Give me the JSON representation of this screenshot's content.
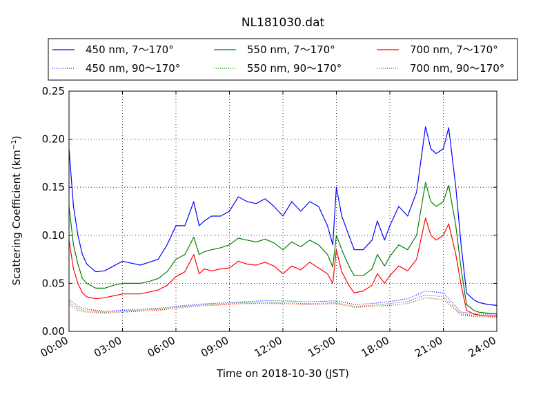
{
  "chart_data": {
    "type": "line",
    "title": "NL181030.dat",
    "xlabel": "Time on 2018-10-30 (JST)",
    "ylabel": "Scattering Coefficient (km",
    "ylabel_sup": "−1",
    "ylabel_close": ")",
    "xlim": [
      0,
      24
    ],
    "ylim": [
      0,
      0.25
    ],
    "grid": true,
    "legend_position": "top",
    "x_ticks": [
      0,
      3,
      6,
      9,
      12,
      15,
      18,
      21,
      24
    ],
    "x_tick_labels": [
      "00:00",
      "03:00",
      "06:00",
      "09:00",
      "12:00",
      "15:00",
      "18:00",
      "21:00",
      "24:00"
    ],
    "y_ticks": [
      0,
      0.05,
      0.1,
      0.15,
      0.2,
      0.25
    ],
    "y_tick_labels": [
      "0.00",
      "0.05",
      "0.10",
      "0.15",
      "0.20",
      "0.25"
    ],
    "series": [
      {
        "name": "450 nm, 7～170°",
        "color": "#0000ff",
        "style": "solid",
        "x": [
          0,
          0.25,
          0.5,
          0.75,
          1,
          1.5,
          2,
          2.5,
          3,
          3.5,
          4,
          4.5,
          5,
          5.5,
          6,
          6.5,
          7,
          7.3,
          7.6,
          8,
          8.5,
          9,
          9.5,
          10,
          10.5,
          11,
          11.5,
          12,
          12.5,
          13,
          13.5,
          14,
          14.5,
          14.8,
          15,
          15.3,
          15.7,
          16,
          16.5,
          17,
          17.3,
          17.7,
          18,
          18.5,
          19,
          19.5,
          20,
          20.3,
          20.6,
          21,
          21.3,
          21.7,
          22,
          22.3,
          22.7,
          23,
          23.5,
          24
        ],
        "y": [
          0.19,
          0.13,
          0.1,
          0.08,
          0.07,
          0.062,
          0.063,
          0.068,
          0.073,
          0.071,
          0.069,
          0.072,
          0.075,
          0.09,
          0.11,
          0.11,
          0.135,
          0.11,
          0.115,
          0.12,
          0.12,
          0.125,
          0.14,
          0.135,
          0.133,
          0.138,
          0.13,
          0.12,
          0.135,
          0.125,
          0.135,
          0.13,
          0.11,
          0.09,
          0.15,
          0.12,
          0.1,
          0.085,
          0.085,
          0.095,
          0.115,
          0.095,
          0.11,
          0.13,
          0.12,
          0.145,
          0.213,
          0.19,
          0.185,
          0.19,
          0.212,
          0.15,
          0.09,
          0.04,
          0.033,
          0.03,
          0.028,
          0.027
        ]
      },
      {
        "name": "450 nm, 90～170°",
        "color": "#0000ff",
        "style": "dotted",
        "x": [
          0,
          0.5,
          1,
          2,
          3,
          4,
          5,
          6,
          7,
          8,
          9,
          10,
          11,
          12,
          13,
          14,
          15,
          16,
          17,
          18,
          19,
          20,
          21,
          22,
          23,
          24
        ],
        "y": [
          0.033,
          0.026,
          0.023,
          0.021,
          0.022,
          0.023,
          0.024,
          0.026,
          0.028,
          0.029,
          0.03,
          0.031,
          0.032,
          0.032,
          0.031,
          0.031,
          0.032,
          0.028,
          0.029,
          0.031,
          0.034,
          0.042,
          0.04,
          0.02,
          0.018,
          0.018
        ]
      },
      {
        "name": "550 nm, 7～170°",
        "color": "#008000",
        "style": "solid",
        "x": [
          0,
          0.25,
          0.5,
          0.75,
          1,
          1.5,
          2,
          2.5,
          3,
          3.5,
          4,
          4.5,
          5,
          5.5,
          6,
          6.5,
          7,
          7.3,
          7.6,
          8,
          8.5,
          9,
          9.5,
          10,
          10.5,
          11,
          11.5,
          12,
          12.5,
          13,
          13.5,
          14,
          14.5,
          14.8,
          15,
          15.3,
          15.7,
          16,
          16.5,
          17,
          17.3,
          17.7,
          18,
          18.5,
          19,
          19.5,
          20,
          20.3,
          20.6,
          21,
          21.3,
          21.7,
          22,
          22.3,
          22.7,
          23,
          23.5,
          24
        ],
        "y": [
          0.13,
          0.09,
          0.07,
          0.055,
          0.05,
          0.045,
          0.045,
          0.048,
          0.05,
          0.05,
          0.05,
          0.052,
          0.055,
          0.062,
          0.075,
          0.08,
          0.098,
          0.08,
          0.083,
          0.085,
          0.087,
          0.09,
          0.097,
          0.095,
          0.093,
          0.096,
          0.092,
          0.085,
          0.093,
          0.088,
          0.095,
          0.09,
          0.08,
          0.067,
          0.1,
          0.085,
          0.068,
          0.058,
          0.058,
          0.065,
          0.08,
          0.068,
          0.078,
          0.09,
          0.085,
          0.1,
          0.155,
          0.135,
          0.13,
          0.135,
          0.152,
          0.11,
          0.065,
          0.028,
          0.022,
          0.02,
          0.019,
          0.018
        ]
      },
      {
        "name": "550 nm, 90～170°",
        "color": "#008000",
        "style": "dotted",
        "x": [
          0,
          0.5,
          1,
          2,
          3,
          4,
          5,
          6,
          7,
          8,
          9,
          10,
          11,
          12,
          13,
          14,
          15,
          16,
          17,
          18,
          19,
          20,
          21,
          22,
          23,
          24
        ],
        "y": [
          0.03,
          0.024,
          0.021,
          0.02,
          0.021,
          0.022,
          0.023,
          0.025,
          0.027,
          0.028,
          0.029,
          0.03,
          0.03,
          0.03,
          0.029,
          0.029,
          0.03,
          0.026,
          0.027,
          0.029,
          0.031,
          0.038,
          0.036,
          0.018,
          0.016,
          0.016
        ]
      },
      {
        "name": "700 nm, 7～170°",
        "color": "#ff0000",
        "style": "solid",
        "x": [
          0,
          0.25,
          0.5,
          0.75,
          1,
          1.5,
          2,
          2.5,
          3,
          3.5,
          4,
          4.5,
          5,
          5.5,
          6,
          6.5,
          7,
          7.3,
          7.6,
          8,
          8.5,
          9,
          9.5,
          10,
          10.5,
          11,
          11.5,
          12,
          12.5,
          13,
          13.5,
          14,
          14.5,
          14.8,
          15,
          15.3,
          15.7,
          16,
          16.5,
          17,
          17.3,
          17.7,
          18,
          18.5,
          19,
          19.5,
          20,
          20.3,
          20.6,
          21,
          21.3,
          21.7,
          22,
          22.3,
          22.7,
          23,
          23.5,
          24
        ],
        "y": [
          0.095,
          0.065,
          0.05,
          0.04,
          0.036,
          0.034,
          0.035,
          0.037,
          0.039,
          0.039,
          0.039,
          0.041,
          0.043,
          0.048,
          0.057,
          0.062,
          0.08,
          0.06,
          0.065,
          0.063,
          0.065,
          0.066,
          0.073,
          0.07,
          0.069,
          0.072,
          0.068,
          0.06,
          0.068,
          0.064,
          0.072,
          0.066,
          0.06,
          0.05,
          0.085,
          0.062,
          0.048,
          0.04,
          0.042,
          0.048,
          0.06,
          0.05,
          0.058,
          0.068,
          0.063,
          0.075,
          0.118,
          0.1,
          0.095,
          0.1,
          0.112,
          0.08,
          0.048,
          0.022,
          0.018,
          0.017,
          0.016,
          0.016
        ]
      },
      {
        "name": "700 nm, 90～170°",
        "color": "#ff0000",
        "style": "dotted",
        "x": [
          0,
          0.5,
          1,
          2,
          3,
          4,
          5,
          6,
          7,
          8,
          9,
          10,
          11,
          12,
          13,
          14,
          15,
          16,
          17,
          18,
          19,
          20,
          21,
          22,
          23,
          24
        ],
        "y": [
          0.028,
          0.022,
          0.02,
          0.019,
          0.02,
          0.021,
          0.022,
          0.024,
          0.026,
          0.027,
          0.028,
          0.029,
          0.029,
          0.029,
          0.028,
          0.028,
          0.029,
          0.025,
          0.026,
          0.027,
          0.029,
          0.035,
          0.033,
          0.017,
          0.015,
          0.015
        ]
      }
    ]
  }
}
